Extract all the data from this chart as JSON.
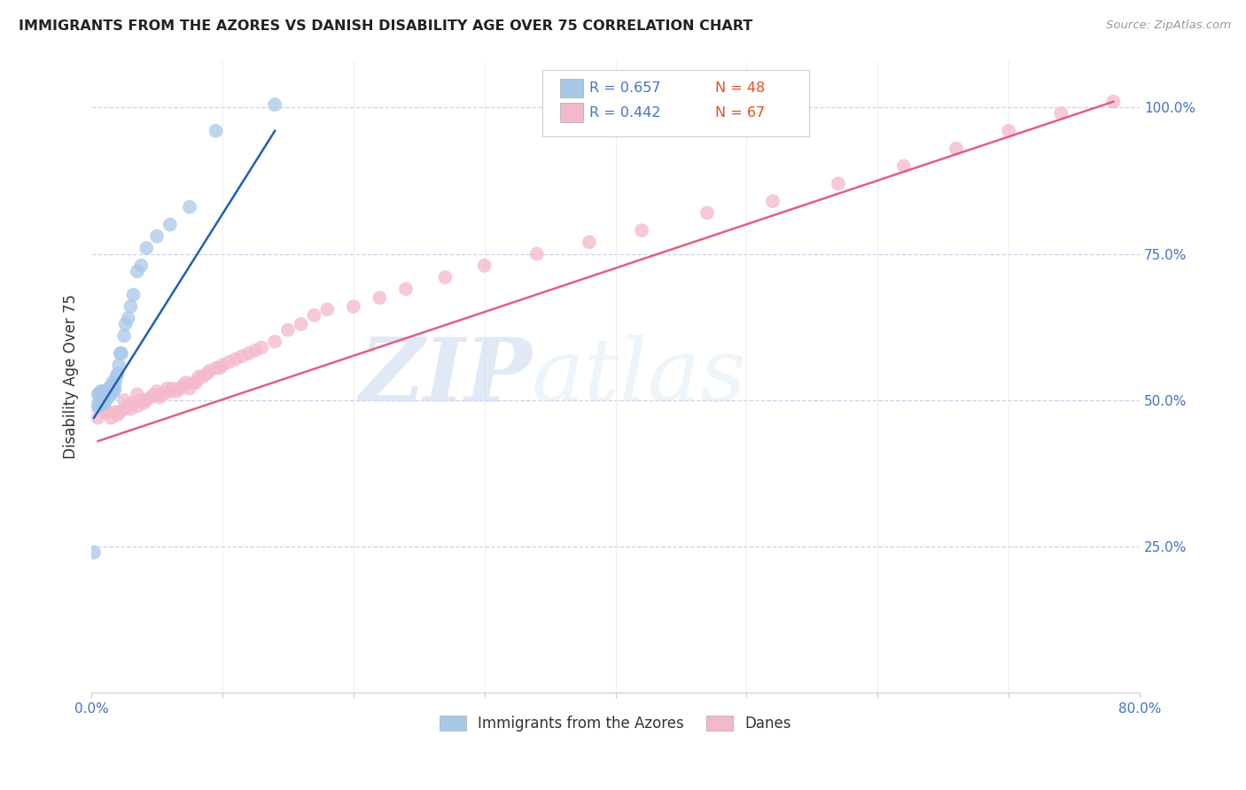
{
  "title": "IMMIGRANTS FROM THE AZORES VS DANISH DISABILITY AGE OVER 75 CORRELATION CHART",
  "source": "Source: ZipAtlas.com",
  "ylabel": "Disability Age Over 75",
  "legend_labels": [
    "Immigrants from the Azores",
    "Danes"
  ],
  "blue_R": "R = 0.657",
  "blue_N": "N = 48",
  "pink_R": "R = 0.442",
  "pink_N": "N = 67",
  "blue_color": "#a8c8e8",
  "pink_color": "#f4b8cc",
  "blue_line_color": "#2060b0",
  "pink_line_color": "#e06080",
  "watermark_zip": "ZIP",
  "watermark_atlas": "atlas",
  "background_color": "#ffffff",
  "grid_color": "#c8d4e8",
  "xlim": [
    0.0,
    0.8
  ],
  "ylim": [
    0.0,
    1.08
  ],
  "blue_scatter_x": [
    0.002,
    0.004,
    0.005,
    0.006,
    0.006,
    0.007,
    0.007,
    0.008,
    0.008,
    0.009,
    0.009,
    0.01,
    0.01,
    0.01,
    0.011,
    0.011,
    0.012,
    0.012,
    0.013,
    0.013,
    0.014,
    0.014,
    0.015,
    0.015,
    0.016,
    0.016,
    0.017,
    0.017,
    0.018,
    0.018,
    0.019,
    0.02,
    0.021,
    0.022,
    0.023,
    0.025,
    0.026,
    0.028,
    0.03,
    0.032,
    0.035,
    0.038,
    0.042,
    0.05,
    0.06,
    0.075,
    0.095,
    0.14
  ],
  "blue_scatter_y": [
    0.24,
    0.49,
    0.51,
    0.49,
    0.51,
    0.5,
    0.515,
    0.495,
    0.51,
    0.5,
    0.515,
    0.495,
    0.505,
    0.515,
    0.5,
    0.51,
    0.505,
    0.515,
    0.505,
    0.52,
    0.51,
    0.52,
    0.51,
    0.515,
    0.52,
    0.53,
    0.515,
    0.525,
    0.52,
    0.53,
    0.54,
    0.545,
    0.56,
    0.58,
    0.58,
    0.61,
    0.63,
    0.64,
    0.66,
    0.68,
    0.72,
    0.73,
    0.76,
    0.78,
    0.8,
    0.83,
    0.96,
    1.005
  ],
  "pink_scatter_x": [
    0.005,
    0.008,
    0.01,
    0.012,
    0.015,
    0.018,
    0.02,
    0.022,
    0.025,
    0.025,
    0.028,
    0.03,
    0.032,
    0.035,
    0.035,
    0.038,
    0.04,
    0.042,
    0.045,
    0.048,
    0.05,
    0.052,
    0.055,
    0.058,
    0.06,
    0.062,
    0.065,
    0.068,
    0.07,
    0.072,
    0.075,
    0.078,
    0.08,
    0.082,
    0.085,
    0.088,
    0.09,
    0.095,
    0.098,
    0.1,
    0.105,
    0.11,
    0.115,
    0.12,
    0.125,
    0.13,
    0.14,
    0.15,
    0.16,
    0.17,
    0.18,
    0.2,
    0.22,
    0.24,
    0.27,
    0.3,
    0.34,
    0.38,
    0.42,
    0.47,
    0.52,
    0.57,
    0.62,
    0.66,
    0.7,
    0.74,
    0.78
  ],
  "pink_scatter_y": [
    0.47,
    0.49,
    0.48,
    0.48,
    0.47,
    0.48,
    0.475,
    0.48,
    0.485,
    0.5,
    0.49,
    0.485,
    0.495,
    0.49,
    0.51,
    0.5,
    0.495,
    0.5,
    0.505,
    0.51,
    0.515,
    0.505,
    0.51,
    0.52,
    0.515,
    0.52,
    0.515,
    0.52,
    0.525,
    0.53,
    0.52,
    0.53,
    0.53,
    0.54,
    0.54,
    0.545,
    0.55,
    0.555,
    0.555,
    0.56,
    0.565,
    0.57,
    0.575,
    0.58,
    0.585,
    0.59,
    0.6,
    0.62,
    0.63,
    0.645,
    0.655,
    0.66,
    0.675,
    0.69,
    0.71,
    0.73,
    0.75,
    0.77,
    0.79,
    0.82,
    0.84,
    0.87,
    0.9,
    0.93,
    0.96,
    0.99,
    1.01
  ],
  "blue_line_x": [
    0.002,
    0.14
  ],
  "blue_line_y": [
    0.47,
    0.96
  ],
  "pink_line_x": [
    0.005,
    0.78
  ],
  "pink_line_y": [
    0.43,
    1.01
  ]
}
